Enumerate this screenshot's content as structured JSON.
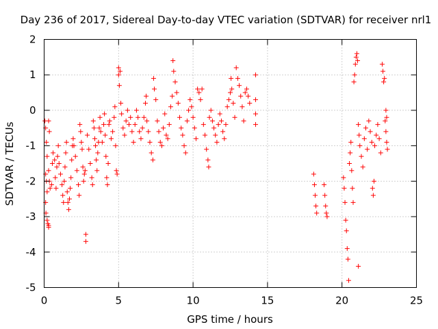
{
  "chart_data": {
    "type": "scatter",
    "title": "Day 236 of 2017, Sidereal Day-to-day VTEC variation (SDTVAR) for receiver nrl1",
    "xlabel": "GPS time / hours",
    "ylabel": "SDTVAR / TECUs",
    "xlim": [
      0,
      25
    ],
    "ylim": [
      -5,
      2
    ],
    "grid": true,
    "marker": "+",
    "marker_color": "#ff0000",
    "x_ticks": [
      "0",
      "5",
      "10",
      "15",
      "20",
      "25"
    ],
    "y_ticks": [
      "2",
      "1",
      "0",
      "-1",
      "-2",
      "-3",
      "-4",
      "-5"
    ],
    "series": [
      {
        "name": "nrl1",
        "points": [
          [
            0.05,
            -0.3
          ],
          [
            0.1,
            -0.5
          ],
          [
            0.15,
            -0.9
          ],
          [
            0.2,
            -1.3
          ],
          [
            0.1,
            -1.8
          ],
          [
            0.15,
            -2.0
          ],
          [
            0.2,
            -2.3
          ],
          [
            0.1,
            -2.6
          ],
          [
            0.12,
            -2.9
          ],
          [
            0.2,
            -3.1
          ],
          [
            0.25,
            -3.2
          ],
          [
            0.3,
            -3.3
          ],
          [
            0.3,
            -3.25
          ],
          [
            0.3,
            -0.3
          ],
          [
            0.35,
            -0.6
          ],
          [
            0.3,
            -1.7
          ],
          [
            0.35,
            -2.0
          ],
          [
            0.4,
            -2.2
          ],
          [
            0.5,
            -2.1
          ],
          [
            0.55,
            -1.5
          ],
          [
            0.6,
            -1.2
          ],
          [
            0.7,
            -1.4
          ],
          [
            0.75,
            -1.9
          ],
          [
            0.8,
            -2.2
          ],
          [
            0.85,
            -1.6
          ],
          [
            0.9,
            -1.3
          ],
          [
            0.95,
            -1.0
          ],
          [
            1.0,
            -1.5
          ],
          [
            1.1,
            -1.8
          ],
          [
            1.2,
            -2.1
          ],
          [
            1.25,
            -2.4
          ],
          [
            1.3,
            -2.6
          ],
          [
            1.35,
            -2.0
          ],
          [
            1.4,
            -1.6
          ],
          [
            1.45,
            -1.2
          ],
          [
            1.5,
            -0.9
          ],
          [
            1.55,
            -2.3
          ],
          [
            1.6,
            -2.6
          ],
          [
            1.65,
            -2.8
          ],
          [
            1.7,
            -2.5
          ],
          [
            1.75,
            -2.2
          ],
          [
            1.8,
            -1.9
          ],
          [
            1.85,
            -1.4
          ],
          [
            1.9,
            -1.0
          ],
          [
            1.95,
            -0.8
          ],
          [
            2.0,
            -1.0
          ],
          [
            2.1,
            -1.3
          ],
          [
            2.2,
            -1.7
          ],
          [
            2.3,
            -2.1
          ],
          [
            2.35,
            -2.4
          ],
          [
            2.4,
            -0.4
          ],
          [
            2.45,
            -0.6
          ],
          [
            2.5,
            -0.9
          ],
          [
            2.55,
            -1.1
          ],
          [
            2.6,
            -1.6
          ],
          [
            2.65,
            -2.0
          ],
          [
            2.7,
            -1.8
          ],
          [
            2.75,
            -1.7
          ],
          [
            2.8,
            -3.5
          ],
          [
            2.8,
            -3.7
          ],
          [
            2.9,
            -0.7
          ],
          [
            3.0,
            -1.1
          ],
          [
            3.1,
            -1.5
          ],
          [
            3.2,
            -1.9
          ],
          [
            3.25,
            -2.1
          ],
          [
            3.3,
            -0.3
          ],
          [
            3.35,
            -0.5
          ],
          [
            3.4,
            -0.8
          ],
          [
            3.45,
            -1.0
          ],
          [
            3.5,
            -1.4
          ],
          [
            3.55,
            -1.7
          ],
          [
            3.6,
            -1.2
          ],
          [
            3.65,
            -0.9
          ],
          [
            3.7,
            -0.5
          ],
          [
            3.75,
            -0.2
          ],
          [
            3.8,
            -0.6
          ],
          [
            3.9,
            -0.9
          ],
          [
            4.0,
            -0.4
          ],
          [
            4.05,
            -0.1
          ],
          [
            4.1,
            -0.7
          ],
          [
            4.15,
            -1.3
          ],
          [
            4.2,
            -1.9
          ],
          [
            4.25,
            -2.1
          ],
          [
            4.3,
            -1.5
          ],
          [
            4.35,
            -0.4
          ],
          [
            4.4,
            -0.3
          ],
          [
            4.5,
            -0.8
          ],
          [
            4.6,
            -0.6
          ],
          [
            4.7,
            -0.2
          ],
          [
            4.75,
            0.1
          ],
          [
            4.8,
            -1.0
          ],
          [
            4.85,
            -1.7
          ],
          [
            4.9,
            -1.8
          ],
          [
            5.0,
            1.2
          ],
          [
            5.0,
            1.0
          ],
          [
            5.05,
            0.7
          ],
          [
            5.1,
            1.1
          ],
          [
            5.15,
            0.2
          ],
          [
            5.2,
            -0.1
          ],
          [
            5.3,
            -0.5
          ],
          [
            5.4,
            -0.7
          ],
          [
            5.5,
            -0.3
          ],
          [
            5.6,
            0.0
          ],
          [
            5.7,
            -0.4
          ],
          [
            5.8,
            -0.2
          ],
          [
            5.9,
            -0.6
          ],
          [
            6.0,
            -0.9
          ],
          [
            6.1,
            -0.4
          ],
          [
            6.2,
            0.0
          ],
          [
            6.3,
            -0.2
          ],
          [
            6.4,
            -0.6
          ],
          [
            6.5,
            -0.8
          ],
          [
            6.6,
            -0.5
          ],
          [
            6.7,
            -0.2
          ],
          [
            6.8,
            0.2
          ],
          [
            6.85,
            0.4
          ],
          [
            6.9,
            -0.3
          ],
          [
            7.0,
            -0.6
          ],
          [
            7.1,
            -0.9
          ],
          [
            7.2,
            -1.2
          ],
          [
            7.3,
            -1.4
          ],
          [
            7.35,
            0.9
          ],
          [
            7.4,
            0.6
          ],
          [
            7.5,
            0.3
          ],
          [
            7.6,
            -0.3
          ],
          [
            7.7,
            -0.6
          ],
          [
            7.8,
            -0.9
          ],
          [
            7.9,
            -1.0
          ],
          [
            8.0,
            -0.5
          ],
          [
            8.1,
            -0.1
          ],
          [
            8.2,
            -0.7
          ],
          [
            8.3,
            -0.8
          ],
          [
            8.4,
            -0.4
          ],
          [
            8.5,
            0.1
          ],
          [
            8.6,
            0.4
          ],
          [
            8.65,
            1.4
          ],
          [
            8.7,
            1.1
          ],
          [
            8.8,
            0.8
          ],
          [
            8.9,
            0.5
          ],
          [
            9.0,
            0.2
          ],
          [
            9.1,
            -0.2
          ],
          [
            9.2,
            -0.5
          ],
          [
            9.3,
            -0.7
          ],
          [
            9.4,
            -1.0
          ],
          [
            9.5,
            -1.2
          ],
          [
            9.6,
            -0.3
          ],
          [
            9.7,
            0.0
          ],
          [
            9.8,
            0.3
          ],
          [
            9.9,
            0.1
          ],
          [
            10.0,
            -0.2
          ],
          [
            10.1,
            -0.5
          ],
          [
            10.2,
            -0.8
          ],
          [
            10.3,
            0.6
          ],
          [
            10.4,
            0.5
          ],
          [
            10.5,
            0.3
          ],
          [
            10.6,
            0.6
          ],
          [
            10.7,
            -0.4
          ],
          [
            10.8,
            -0.7
          ],
          [
            10.9,
            -1.1
          ],
          [
            11.0,
            -1.4
          ],
          [
            11.05,
            -1.6
          ],
          [
            11.1,
            -0.2
          ],
          [
            11.2,
            0.0
          ],
          [
            11.3,
            -0.3
          ],
          [
            11.4,
            -0.5
          ],
          [
            11.5,
            -0.7
          ],
          [
            11.6,
            -0.9
          ],
          [
            11.7,
            -0.4
          ],
          [
            11.8,
            -0.1
          ],
          [
            11.9,
            -0.3
          ],
          [
            12.0,
            -0.6
          ],
          [
            12.1,
            -0.8
          ],
          [
            12.2,
            -0.4
          ],
          [
            12.3,
            0.1
          ],
          [
            12.4,
            0.3
          ],
          [
            12.5,
            0.5
          ],
          [
            12.55,
            0.9
          ],
          [
            12.6,
            0.6
          ],
          [
            12.7,
            0.2
          ],
          [
            12.8,
            -0.2
          ],
          [
            12.9,
            1.2
          ],
          [
            13.0,
            0.9
          ],
          [
            13.1,
            0.7
          ],
          [
            13.2,
            0.4
          ],
          [
            13.3,
            0.1
          ],
          [
            13.4,
            -0.3
          ],
          [
            13.5,
            0.5
          ],
          [
            13.6,
            0.6
          ],
          [
            13.7,
            0.4
          ],
          [
            13.8,
            0.2
          ],
          [
            14.2,
            1.0
          ],
          [
            14.2,
            0.3
          ],
          [
            14.2,
            -0.1
          ],
          [
            14.2,
            -0.4
          ],
          [
            18.1,
            -1.8
          ],
          [
            18.15,
            -2.1
          ],
          [
            18.2,
            -2.4
          ],
          [
            18.25,
            -2.7
          ],
          [
            18.3,
            -2.9
          ],
          [
            18.8,
            -2.1
          ],
          [
            18.85,
            -2.4
          ],
          [
            18.9,
            -2.7
          ],
          [
            18.95,
            -2.9
          ],
          [
            19.0,
            -3.0
          ],
          [
            20.1,
            -1.9
          ],
          [
            20.15,
            -2.2
          ],
          [
            20.2,
            -2.6
          ],
          [
            20.25,
            -3.1
          ],
          [
            20.3,
            -3.4
          ],
          [
            20.35,
            -3.9
          ],
          [
            20.4,
            -4.2
          ],
          [
            20.45,
            -4.8
          ],
          [
            20.5,
            -1.5
          ],
          [
            20.55,
            -1.2
          ],
          [
            20.6,
            -0.9
          ],
          [
            20.65,
            -1.7
          ],
          [
            20.7,
            -2.2
          ],
          [
            20.75,
            -2.6
          ],
          [
            20.8,
            0.8
          ],
          [
            20.85,
            1.0
          ],
          [
            20.9,
            1.3
          ],
          [
            20.95,
            1.5
          ],
          [
            21.0,
            1.6
          ],
          [
            21.05,
            1.4
          ],
          [
            21.1,
            -4.4
          ],
          [
            21.1,
            -0.4
          ],
          [
            21.15,
            -0.7
          ],
          [
            21.2,
            -1.0
          ],
          [
            21.3,
            -1.3
          ],
          [
            21.4,
            -1.6
          ],
          [
            21.5,
            -0.8
          ],
          [
            21.6,
            -0.5
          ],
          [
            21.7,
            -1.1
          ],
          [
            21.8,
            -0.3
          ],
          [
            21.9,
            -0.6
          ],
          [
            22.0,
            -0.9
          ],
          [
            22.05,
            -2.2
          ],
          [
            22.1,
            -2.4
          ],
          [
            22.15,
            -2.0
          ],
          [
            22.2,
            -1.0
          ],
          [
            22.3,
            -0.7
          ],
          [
            22.4,
            -0.4
          ],
          [
            22.5,
            -0.8
          ],
          [
            22.6,
            -1.2
          ],
          [
            22.7,
            1.3
          ],
          [
            22.75,
            1.1
          ],
          [
            22.8,
            0.8
          ],
          [
            22.85,
            0.9
          ],
          [
            22.9,
            -0.3
          ],
          [
            22.95,
            -0.6
          ],
          [
            23.0,
            -0.9
          ],
          [
            23.05,
            -1.1
          ],
          [
            22.95,
            0.0
          ],
          [
            23.0,
            -0.2
          ]
        ]
      }
    ]
  }
}
